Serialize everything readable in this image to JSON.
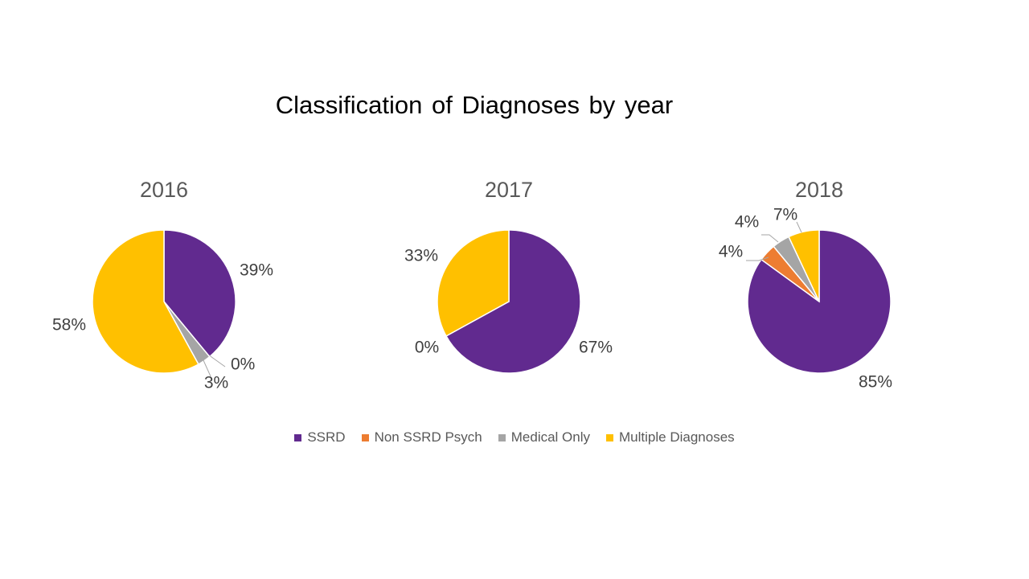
{
  "title": "Classification of Diagnoses by year",
  "colors": {
    "SSRD": "#612a8f",
    "Non SSRD Psych": "#ed7d31",
    "Medical Only": "#a5a5a5",
    "Multiple Diagnoses": "#ffc000"
  },
  "legend": [
    "SSRD",
    "Non SSRD Psych",
    "Medical Only",
    "Multiple Diagnoses"
  ],
  "chart_data": [
    {
      "type": "pie",
      "title": "2016",
      "categories": [
        "SSRD",
        "Non SSRD Psych",
        "Medical Only",
        "Multiple Diagnoses"
      ],
      "values": [
        39,
        0,
        3,
        58
      ],
      "labels": [
        "39%",
        "0%",
        "3%",
        "58%"
      ]
    },
    {
      "type": "pie",
      "title": "2017",
      "categories": [
        "SSRD",
        "Non SSRD Psych",
        "Medical Only",
        "Multiple Diagnoses"
      ],
      "values": [
        67,
        0,
        0,
        33
      ],
      "labels": [
        "67%",
        "0%",
        "0%",
        "33%"
      ]
    },
    {
      "type": "pie",
      "title": "2018",
      "categories": [
        "SSRD",
        "Non SSRD Psych",
        "Medical Only",
        "Multiple Diagnoses"
      ],
      "values": [
        85,
        4,
        4,
        7
      ],
      "labels": [
        "85%",
        "4%",
        "4%",
        "7%"
      ]
    }
  ]
}
